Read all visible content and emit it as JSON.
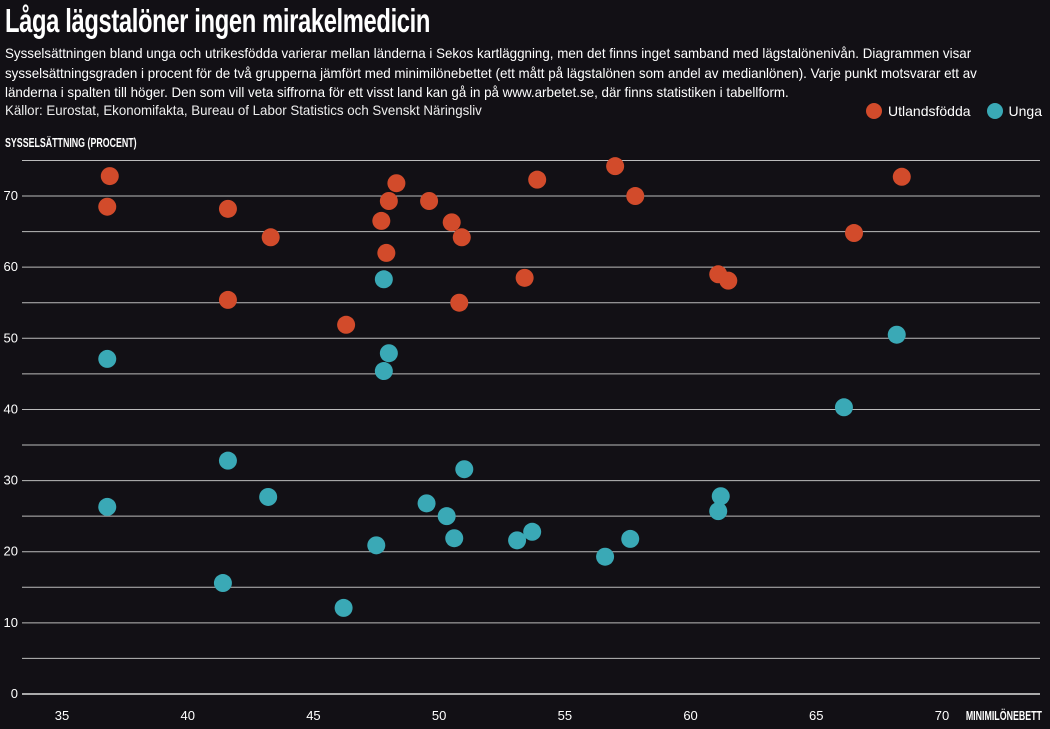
{
  "header": {
    "title": "Låga lägstalöner ingen mirakelmedicin",
    "description": "Sysselsättningen bland unga och utrikesfödda varierar mellan länderna i Sekos kartläggning, men det finns inget samband med lägstalönenivån. Diagrammen visar sysselsättningsgraden i procent för de två grupperna jämfört med minimilönebettet (ett mått på lägstalönen som andel av medianlönen). Varje punkt motsvarar ett av länderna i spalten till höger. Den som vill veta siffrorna för ett visst land kan gå in på www.arbetet.se, där finns statistiken i tabellform.",
    "source": "Källor: Eurostat, Ekonomifakta, Bureau of Labor Statistics och Svenskt Näringsliv"
  },
  "chart_data": {
    "type": "scatter",
    "title": "Låga lägstalöner ingen mirakelmedicin",
    "xlabel": "MINIMILÖNEBETT",
    "ylabel": "SYSSELSÄTTNING (PROCENT)",
    "xlim": [
      34,
      74
    ],
    "ylim": [
      0,
      75
    ],
    "xticks": [
      35,
      40,
      45,
      50,
      55,
      60,
      65,
      70
    ],
    "yticks": [
      0,
      10,
      20,
      30,
      40,
      50,
      60,
      70
    ],
    "grid": true,
    "legend_position": "top-right",
    "series": [
      {
        "name": "Utlandsfödda",
        "color": "#d24b2b",
        "points": [
          [
            36.9,
            72.8
          ],
          [
            36.8,
            68.5
          ],
          [
            41.6,
            68.2
          ],
          [
            43.3,
            64.2
          ],
          [
            41.6,
            55.4
          ],
          [
            46.3,
            51.9
          ],
          [
            48.3,
            71.8
          ],
          [
            48.0,
            69.3
          ],
          [
            47.7,
            66.5
          ],
          [
            47.9,
            62.0
          ],
          [
            49.6,
            69.3
          ],
          [
            50.5,
            66.3
          ],
          [
            50.9,
            64.2
          ],
          [
            50.8,
            55.0
          ],
          [
            53.4,
            58.5
          ],
          [
            53.9,
            72.3
          ],
          [
            57.0,
            74.2
          ],
          [
            57.8,
            70.0
          ],
          [
            61.1,
            59.0
          ],
          [
            61.5,
            58.1
          ],
          [
            66.5,
            64.8
          ],
          [
            68.4,
            72.7
          ]
        ]
      },
      {
        "name": "Unga",
        "color": "#3aa9b6",
        "points": [
          [
            36.8,
            47.1
          ],
          [
            36.8,
            26.3
          ],
          [
            41.6,
            32.8
          ],
          [
            41.4,
            15.6
          ],
          [
            43.2,
            27.7
          ],
          [
            47.8,
            58.3
          ],
          [
            48.0,
            47.9
          ],
          [
            47.8,
            45.4
          ],
          [
            47.5,
            20.9
          ],
          [
            46.2,
            12.1
          ],
          [
            49.5,
            26.8
          ],
          [
            50.3,
            25.0
          ],
          [
            51.0,
            31.6
          ],
          [
            50.6,
            21.9
          ],
          [
            53.1,
            21.6
          ],
          [
            53.7,
            22.8
          ],
          [
            56.6,
            19.3
          ],
          [
            57.6,
            21.8
          ],
          [
            61.2,
            27.8
          ],
          [
            61.1,
            25.7
          ],
          [
            66.1,
            40.3
          ],
          [
            68.2,
            50.5
          ]
        ]
      }
    ]
  }
}
